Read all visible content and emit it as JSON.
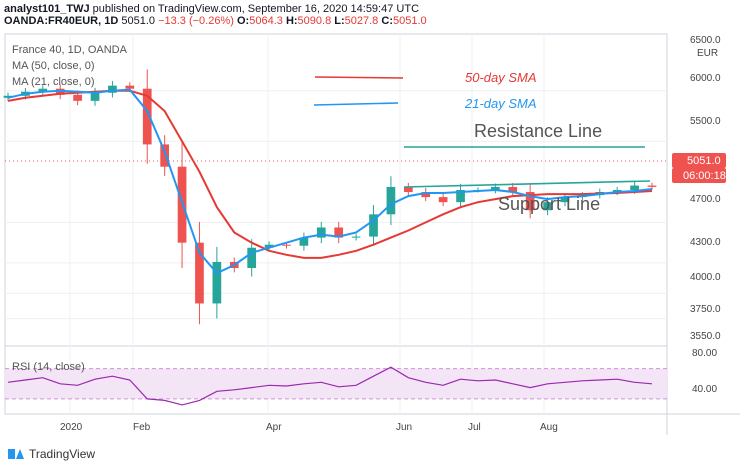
{
  "header": {
    "author": "analyst101_TWJ",
    "published": "published on TradingView.com, September 16, 2020 14:59:47 UTC",
    "symbol": "OANDA:FR40EUR, 1D",
    "last": "5051.0",
    "change": "−13.3 (−0.26%)",
    "o_label": "O:",
    "o": "5064.3",
    "h_label": "H:",
    "h": "5090.8",
    "l_label": "L:",
    "l": "5027.8",
    "c_label": "C:",
    "c": "5051.0"
  },
  "legend": {
    "title": "France 40, 1D, OANDA",
    "ma1": "MA (50, close, 0)",
    "ma2": "MA (21, close, 0)",
    "rsi": "RSI (14, close)"
  },
  "annotations": {
    "resistance": "Resistance Line",
    "support": "Support Line",
    "sma50": "50-day SMA",
    "sma21": "21-day SMA"
  },
  "price_axis": {
    "currency": "EUR",
    "ticks": [
      "6500.0",
      "6000.0",
      "5500.0",
      "4700.0",
      "4300.0",
      "4000.0",
      "3750.0",
      "3550.0"
    ],
    "last_label": "5051.0",
    "countdown": "06:00:18"
  },
  "rsi_axis": {
    "ticks": [
      "80.00",
      "40.00"
    ]
  },
  "time_axis": {
    "ticks": [
      "2020",
      "Feb",
      "Apr",
      "Jun",
      "Jul",
      "Aug"
    ]
  },
  "footer": {
    "brand": "TradingView"
  },
  "colors": {
    "up": "#26a69a",
    "down": "#ef5350",
    "sma50": "#e53935",
    "sma21": "#2196f3",
    "rsi": "#9c27b0",
    "channel": "#26a69a"
  },
  "chart_data": {
    "type": "candlestick",
    "title": "France 40, 1D, OANDA",
    "ylim": [
      3480,
      6560
    ],
    "rsi_ylim": [
      10,
      100
    ],
    "x": [
      "2020-01-01",
      "2020-01-08",
      "2020-01-15",
      "2020-01-22",
      "2020-01-29",
      "2020-02-05",
      "2020-02-12",
      "2020-02-19",
      "2020-02-26",
      "2020-03-04",
      "2020-03-11",
      "2020-03-18",
      "2020-03-25",
      "2020-04-01",
      "2020-04-08",
      "2020-04-15",
      "2020-04-22",
      "2020-04-29",
      "2020-05-06",
      "2020-05-13",
      "2020-05-20",
      "2020-05-27",
      "2020-06-03",
      "2020-06-10",
      "2020-06-17",
      "2020-06-24",
      "2020-07-01",
      "2020-07-08",
      "2020-07-15",
      "2020-07-22",
      "2020-07-29",
      "2020-08-05",
      "2020-08-12",
      "2020-08-19",
      "2020-08-26",
      "2020-09-02",
      "2020-09-09",
      "2020-09-16"
    ],
    "series": [
      {
        "name": "France 40, 1D, OANDA",
        "close": [
          5950,
          5990,
          6020,
          5960,
          5900,
          5980,
          6050,
          6020,
          5470,
          5250,
          4500,
          3900,
          4310,
          4250,
          4450,
          4480,
          4470,
          4550,
          4650,
          4550,
          4560,
          4780,
          5050,
          5000,
          4950,
          4900,
          5020,
          5020,
          5050,
          5000,
          4820,
          4900,
          4950,
          4970,
          5000,
          5020,
          5064,
          5051
        ]
      },
      {
        "name": "MA (50, close, 0)",
        "values": [
          5900,
          5930,
          5950,
          5970,
          5980,
          5990,
          6000,
          6000,
          5950,
          5800,
          5500,
          5200,
          4850,
          4600,
          4500,
          4420,
          4380,
          4350,
          4350,
          4380,
          4420,
          4480,
          4550,
          4620,
          4700,
          4780,
          4850,
          4900,
          4930,
          4960,
          4970,
          4980,
          4980,
          4980,
          4985,
          4990,
          5000,
          5010
        ]
      },
      {
        "name": "MA (21, close, 0)",
        "values": [
          5930,
          5970,
          5990,
          6000,
          5990,
          5980,
          6000,
          6010,
          5800,
          5400,
          4900,
          4400,
          4200,
          4280,
          4400,
          4450,
          4500,
          4550,
          4580,
          4560,
          4600,
          4720,
          4880,
          4960,
          4990,
          4990,
          5000,
          5010,
          5020,
          5000,
          4960,
          4930,
          4950,
          4960,
          4980,
          5000,
          5010,
          5030
        ]
      },
      {
        "name": "RSI (14, close)",
        "values": [
          52,
          55,
          58,
          50,
          48,
          56,
          60,
          55,
          30,
          28,
          22,
          28,
          40,
          42,
          45,
          48,
          47,
          50,
          52,
          46,
          48,
          60,
          72,
          58,
          52,
          48,
          56,
          54,
          55,
          50,
          45,
          50,
          52,
          54,
          55,
          56,
          52,
          50
        ]
      }
    ]
  }
}
